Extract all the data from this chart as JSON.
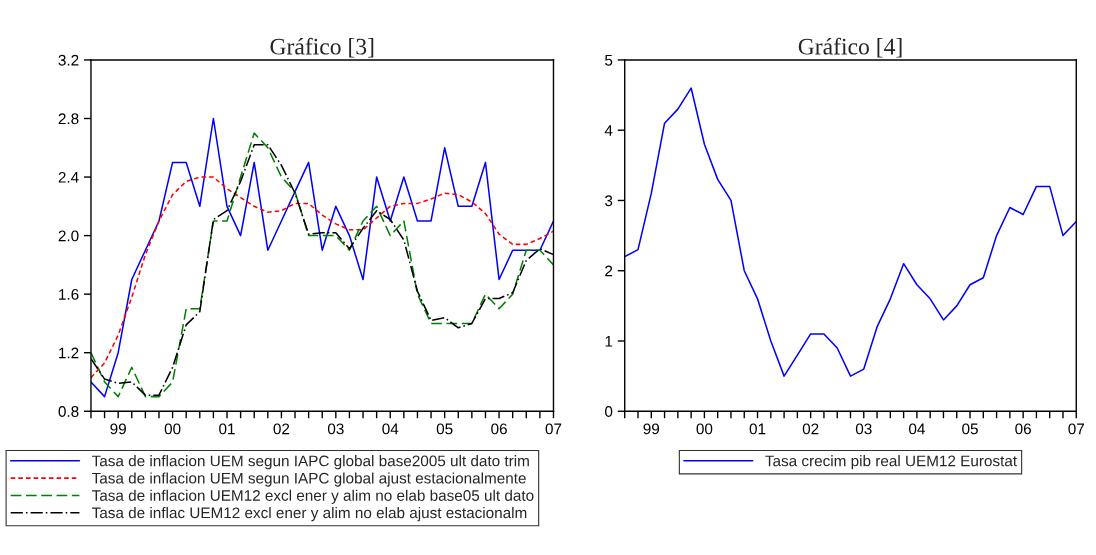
{
  "chart_data": [
    {
      "type": "line",
      "title": "Gráfico [3]",
      "categories": [
        null,
        null,
        "99",
        null,
        null,
        null,
        "00",
        null,
        null,
        null,
        "01",
        null,
        null,
        null,
        "02",
        null,
        null,
        null,
        "03",
        null,
        null,
        null,
        "04",
        null,
        null,
        null,
        "05",
        null,
        null,
        null,
        "06",
        null,
        null,
        null,
        "07"
      ],
      "ylim": [
        0.8,
        3.2
      ],
      "yticks": [
        {
          "value": 0.8,
          "label": "0.8"
        },
        {
          "value": 1.2,
          "label": "1.2"
        },
        {
          "value": 1.6,
          "label": "1.6"
        },
        {
          "value": 2.0,
          "label": "2.0"
        },
        {
          "value": 2.4,
          "label": "2.4"
        },
        {
          "value": 2.8,
          "label": "2.8"
        },
        {
          "value": 3.2,
          "label": "3.2"
        }
      ],
      "grid": false,
      "legend": "bottom",
      "marker": "none",
      "series": [
        {
          "name": "Tasa de inflacion UEM segun IAPC global base2005 ult dato trim",
          "color": "#0000ff",
          "line_style": "solid",
          "values": [
            1.0,
            0.9,
            1.2,
            1.7,
            1.9,
            2.1,
            2.5,
            2.5,
            2.2,
            2.8,
            2.2,
            2.0,
            2.5,
            1.9,
            2.1,
            2.3,
            2.5,
            1.9,
            2.2,
            2.0,
            1.7,
            2.4,
            2.1,
            2.4,
            2.1,
            2.1,
            2.6,
            2.2,
            2.2,
            2.5,
            1.7,
            1.9,
            1.9,
            1.9,
            2.1
          ]
        },
        {
          "name": "Tasa de inflacion UEM segun IAPC global ajust estacionalmente",
          "color": "#ff0000",
          "line_style": "dotted",
          "values": [
            1.03,
            1.13,
            1.32,
            1.58,
            1.87,
            2.1,
            2.28,
            2.37,
            2.4,
            2.4,
            2.32,
            2.26,
            2.2,
            2.16,
            2.17,
            2.22,
            2.22,
            2.14,
            2.08,
            2.04,
            2.04,
            2.12,
            2.2,
            2.22,
            2.22,
            2.25,
            2.29,
            2.28,
            2.23,
            2.15,
            2.01,
            1.94,
            1.94,
            1.98,
            2.03
          ]
        },
        {
          "name": "Tasa de inflacion UEM12 excl ener y alim no elab base05 ult dato",
          "color": "#008000",
          "line_style": "dashed",
          "values": [
            1.2,
            1.0,
            0.9,
            1.1,
            0.9,
            0.9,
            1.0,
            1.5,
            1.5,
            2.1,
            2.1,
            2.4,
            2.7,
            2.6,
            2.4,
            2.3,
            2.0,
            2.0,
            2.0,
            1.9,
            2.1,
            2.2,
            2.0,
            2.1,
            1.6,
            1.4,
            1.4,
            1.4,
            1.4,
            1.6,
            1.5,
            1.6,
            1.9,
            1.9,
            1.8
          ]
        },
        {
          "name": "Tasa de inflac UEM12 excl ener y alim no elab ajust estacionalm",
          "color": "#000000",
          "line_style": "dashdot",
          "values": [
            1.16,
            1.02,
            0.99,
            1.0,
            0.91,
            0.91,
            1.1,
            1.39,
            1.48,
            2.11,
            2.17,
            2.37,
            2.62,
            2.62,
            2.48,
            2.29,
            2.01,
            2.02,
            2.02,
            1.91,
            2.05,
            2.17,
            2.11,
            1.97,
            1.62,
            1.42,
            1.44,
            1.37,
            1.4,
            1.57,
            1.57,
            1.61,
            1.83,
            1.91,
            1.87
          ]
        }
      ]
    },
    {
      "type": "line",
      "title": "Gráfico [4]",
      "categories": [
        null,
        null,
        "99",
        null,
        null,
        null,
        "00",
        null,
        null,
        null,
        "01",
        null,
        null,
        null,
        "02",
        null,
        null,
        null,
        "03",
        null,
        null,
        null,
        "04",
        null,
        null,
        null,
        "05",
        null,
        null,
        null,
        "06",
        null,
        null,
        null,
        "07"
      ],
      "ylim": [
        0,
        5
      ],
      "yticks": [
        0,
        1,
        2,
        3,
        4,
        5
      ],
      "grid": false,
      "legend": "bottom",
      "marker": "none",
      "series": [
        {
          "name": "Tasa crecim pib real UEM12 Eurostat",
          "color": "#0000ff",
          "line_style": "solid",
          "values": [
            2.2,
            2.3,
            3.1,
            4.1,
            4.3,
            4.6,
            3.8,
            3.3,
            3.0,
            2.0,
            1.6,
            1.0,
            0.5,
            0.8,
            1.1,
            1.1,
            0.9,
            0.5,
            0.6,
            1.2,
            1.6,
            2.1,
            1.8,
            1.6,
            1.3,
            1.5,
            1.8,
            1.9,
            2.5,
            2.9,
            2.8,
            3.2,
            3.2,
            2.5,
            2.7
          ]
        }
      ]
    }
  ]
}
